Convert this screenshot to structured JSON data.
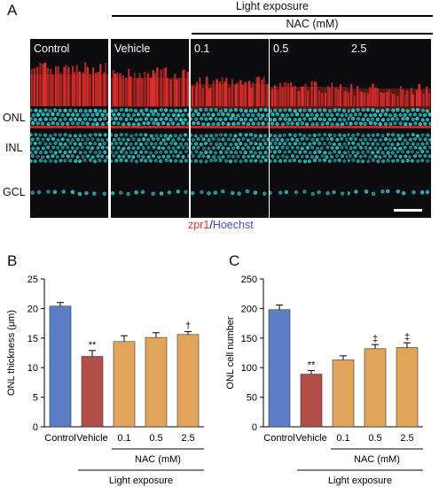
{
  "panel_a": {
    "letter": "A",
    "header_light": "Light exposure",
    "header_nac": "NAC (mM)",
    "images": [
      {
        "label": "Control",
        "rod": 0.0
      },
      {
        "label": "Vehicle",
        "rod": 0.2
      },
      {
        "label": "0.1",
        "rod": 0.55
      },
      {
        "label": "0.5",
        "rod": 0.7
      },
      {
        "label": "2.5",
        "rod": 0.8
      }
    ],
    "layers": [
      "ONL",
      "INL",
      "GCL"
    ],
    "stain_red": "zpr1",
    "stain_sep": "/",
    "stain_blue": "Hoechst",
    "colors": {
      "red": "#e8322f",
      "cyan": "#2fc4c9",
      "blue": "#3a4fd9"
    }
  },
  "chart_data": [
    {
      "type": "bar",
      "letter": "B",
      "categories": [
        "Control",
        "Vehicle",
        "0.1",
        "0.5",
        "2.5"
      ],
      "values": [
        20.4,
        11.9,
        14.4,
        15.1,
        15.6
      ],
      "errors": [
        0.6,
        1.0,
        1.0,
        0.8,
        0.5
      ],
      "annotations": [
        "",
        "**",
        "",
        "",
        "†"
      ],
      "colors": [
        "#5b7ec4",
        "#b1504a",
        "#e0a55a",
        "#e0a55a",
        "#e0a55a"
      ],
      "ylabel": "ONL thickness (μm)",
      "ylim": [
        0,
        25
      ],
      "yticks": [
        0,
        5,
        10,
        15,
        20,
        25
      ],
      "group_label": "NAC (mM)",
      "bottom_label": "Light exposure"
    },
    {
      "type": "bar",
      "letter": "C",
      "categories": [
        "Control",
        "Vehicle",
        "0.1",
        "0.5",
        "2.5"
      ],
      "values": [
        198,
        89,
        113,
        132,
        134
      ],
      "errors": [
        8,
        6,
        7,
        7,
        8
      ],
      "annotations": [
        "",
        "**",
        "",
        "‡",
        "‡"
      ],
      "colors": [
        "#5b7ec4",
        "#b1504a",
        "#e0a55a",
        "#e0a55a",
        "#e0a55a"
      ],
      "ylabel": "ONL cell number",
      "ylim": [
        0,
        250
      ],
      "yticks": [
        0,
        50,
        100,
        150,
        200,
        250
      ],
      "group_label": "NAC (mM)",
      "bottom_label": "Light exposure"
    }
  ]
}
